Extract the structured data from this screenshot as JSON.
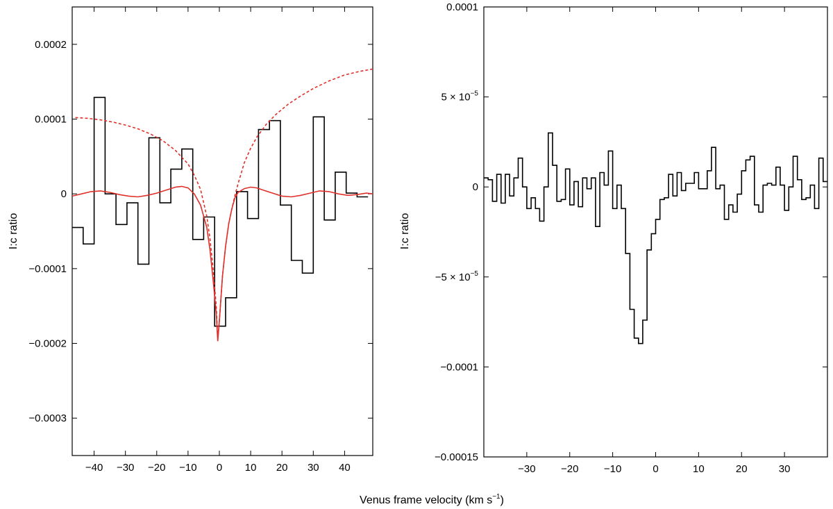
{
  "figure": {
    "xlabel": "Venus frame velocity (km s",
    "xlabel_sup": "−1",
    "xlabel_close": ")"
  },
  "chart_data": [
    {
      "type": "line",
      "ylabel": "I:c ratio",
      "xlim": [
        -47,
        49
      ],
      "ylim": [
        -0.00035,
        0.00025
      ],
      "x_ticks": [
        -40,
        -30,
        -20,
        -10,
        0,
        10,
        20,
        30,
        40
      ],
      "x_tick_labels": [
        "−40",
        "−30",
        "−20",
        "−10",
        "0",
        "10",
        "20",
        "30",
        "40"
      ],
      "y_ticks": [
        0.0002,
        0.0001,
        0,
        -0.0001,
        -0.0002,
        -0.0003
      ],
      "y_tick_labels": [
        "0.0002",
        "0.0001",
        "0",
        "−0.0001",
        "−0.0002",
        "−0.0003"
      ],
      "series": [
        {
          "style": "step",
          "color": "#000000",
          "edges": [
            -47,
            -43.5,
            -40,
            -36.5,
            -33,
            -29.5,
            -26,
            -22.5,
            -19,
            -15.5,
            -12,
            -8.5,
            -5,
            -1.5,
            2,
            5.5,
            9,
            12.5,
            16,
            19.5,
            23,
            26.5,
            30,
            33.5,
            37,
            40.5,
            44,
            47.5
          ],
          "values": [
            -4.5e-05,
            -6.7e-05,
            0.000129,
            0.0,
            -4.1e-05,
            -1.2e-05,
            -9.4e-05,
            7.5e-05,
            -1.2e-05,
            3.3e-05,
            6e-05,
            -6.1e-05,
            -3.1e-05,
            -0.000177,
            -0.000139,
            3e-06,
            -3.3e-05,
            8.6e-05,
            9.8e-05,
            -1.5e-05,
            -8.9e-05,
            -0.000106,
            0.000103,
            -3.5e-05,
            2.9e-05,
            1e-06,
            -4e-06
          ]
        },
        {
          "style": "solid",
          "color": "#e0302a",
          "x": [
            -47,
            -44,
            -41,
            -38,
            -35,
            -32,
            -29,
            -26,
            -23,
            -20,
            -17,
            -14,
            -12,
            -10,
            -8,
            -6,
            -4,
            -3,
            -2,
            -1,
            -0.5,
            0,
            1,
            2,
            3,
            4,
            5,
            6,
            8,
            10,
            12,
            14,
            17,
            20,
            23,
            26,
            29,
            32,
            35,
            38,
            41,
            44,
            47,
            49
          ],
          "values": [
            -3e-06,
            0.0,
            3e-06,
            4e-06,
            2e-06,
            -1e-06,
            -3e-06,
            -4e-06,
            -2e-06,
            1e-06,
            5e-06,
            9e-06,
            1e-05,
            8e-06,
            0.0,
            -1.5e-05,
            -4.5e-05,
            -7.5e-05,
            -0.000115,
            -0.00016,
            -0.000197,
            -0.00017,
            -0.00011,
            -7e-05,
            -4e-05,
            -2e-05,
            -5e-06,
            2e-06,
            7e-06,
            9e-06,
            8e-06,
            5e-06,
            1e-06,
            -3e-06,
            -4e-06,
            -2e-06,
            1e-06,
            4e-06,
            3e-06,
            0.0,
            -2e-06,
            -1e-06,
            1e-06,
            0.0
          ]
        },
        {
          "style": "dashed",
          "color": "#e0302a",
          "x": [
            -46,
            -42,
            -38,
            -34,
            -30,
            -26,
            -22,
            -18,
            -14,
            -10,
            -8,
            -6,
            -4,
            -3,
            -2,
            -1,
            -0.5,
            0,
            1,
            2,
            3,
            4,
            5,
            6,
            8,
            10,
            12,
            15,
            18,
            22,
            26,
            30,
            35,
            40,
            45,
            49
          ],
          "values": [
            0.000102,
            0.000101,
            9.9e-05,
            9.6e-05,
            9.2e-05,
            8.7e-05,
            8e-05,
            7.1e-05,
            5.8e-05,
            4e-05,
            2.5e-05,
            6e-06,
            -3e-05,
            -6e-05,
            -0.0001,
            -0.00015,
            -0.000193,
            -0.00017,
            -0.00011,
            -7e-05,
            -4e-05,
            -2e-05,
            -2e-06,
            1.4e-05,
            4.2e-05,
            6.1e-05,
            7.6e-05,
            9.3e-05,
            0.000106,
            0.00012,
            0.000131,
            0.000141,
            0.000151,
            0.000159,
            0.000164,
            0.000167
          ]
        }
      ]
    },
    {
      "type": "line",
      "ylabel": "I:c ratio",
      "xlim": [
        -40,
        40
      ],
      "ylim": [
        -0.00015,
        0.0001
      ],
      "x_ticks": [
        -30,
        -20,
        -10,
        0,
        10,
        20,
        30
      ],
      "x_tick_labels": [
        "−30",
        "−20",
        "−10",
        "0",
        "10",
        "20",
        "30"
      ],
      "y_ticks": [
        0.0001,
        5e-05,
        0,
        -5e-05,
        -0.0001,
        -0.00015
      ],
      "y_tick_labels": [
        {
          "text": "0.0001",
          "sup": ""
        },
        {
          "text": "5 × 10",
          "sup": "−5"
        },
        {
          "text": "0",
          "sup": ""
        },
        {
          "text": "−5 × 10",
          "sup": "−5"
        },
        {
          "text": "−0.0001",
          "sup": ""
        },
        {
          "text": "−0.00015",
          "sup": ""
        }
      ],
      "series": [
        {
          "style": "step",
          "color": "#000000",
          "x_start": -40,
          "bin_width": 1,
          "values": [
            5e-06,
            4e-06,
            -8e-06,
            7e-06,
            -9e-06,
            7e-06,
            -5e-06,
            5e-06,
            1.6e-05,
            0.0,
            -1.2e-05,
            -6e-06,
            -1.2e-05,
            -1.9e-05,
            0.0,
            3e-05,
            1.2e-05,
            -8e-06,
            -7e-06,
            1e-05,
            -1e-05,
            3e-06,
            -1.1e-05,
            5e-06,
            -1e-06,
            5e-06,
            -2.2e-05,
            8e-06,
            1e-06,
            2e-05,
            -1.2e-05,
            1e-06,
            -1.2e-05,
            -3.7e-05,
            -6.8e-05,
            -8.4e-05,
            -8.7e-05,
            -7.4e-05,
            -3.5e-05,
            -2.6e-05,
            -1.8e-05,
            -7e-06,
            -6e-06,
            7e-06,
            -5e-06,
            8e-06,
            -2e-06,
            2e-06,
            2e-06,
            8e-06,
            -1e-06,
            -1e-06,
            9e-06,
            2.2e-05,
            -1e-06,
            1e-06,
            -1.8e-05,
            -1e-05,
            -1.4e-05,
            -4e-06,
            9e-06,
            1.5e-05,
            1.7e-05,
            -1e-05,
            -1.4e-05,
            1e-06,
            2e-06,
            1e-06,
            1.1e-05,
            1e-06,
            -1.3e-05,
            0.0,
            1.7e-05,
            4e-06,
            -7e-06,
            -6e-06,
            1e-06,
            -1.2e-05,
            1.6e-05,
            3e-06
          ]
        }
      ]
    }
  ]
}
